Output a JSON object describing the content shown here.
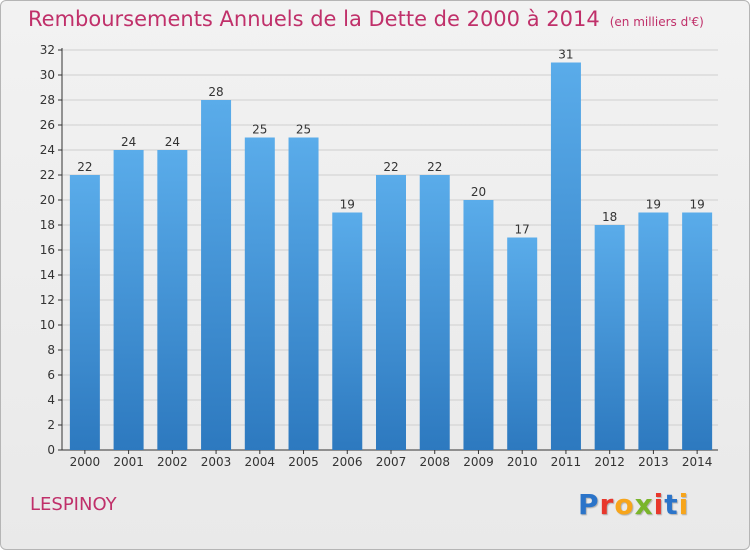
{
  "title": "Remboursements Annuels de la Dette de 2000 à 2014",
  "subtitle": "(en milliers d'€)",
  "commune": "LESPINOY",
  "logo": {
    "text": "Proxiti",
    "letter_colors": [
      "#2b74c9",
      "#e8372c",
      "#f7a51b",
      "#7ab52b",
      "#e8372c",
      "#2b74c9",
      "#f7a51b"
    ]
  },
  "colors": {
    "title": "#c0306a",
    "bar_top": "#5aacea",
    "bar_bottom": "#2d79bf",
    "axis": "#333333",
    "grid": "#cfcfcf"
  },
  "chart_data": {
    "type": "bar",
    "categories": [
      "2000",
      "2001",
      "2002",
      "2003",
      "2004",
      "2005",
      "2006",
      "2007",
      "2008",
      "2009",
      "2010",
      "2011",
      "2012",
      "2013",
      "2014"
    ],
    "values": [
      22,
      24,
      24,
      28,
      25,
      25,
      19,
      22,
      22,
      20,
      17,
      31,
      18,
      19,
      19
    ],
    "ylim": [
      0,
      32
    ],
    "yticks": [
      0,
      2,
      4,
      6,
      8,
      10,
      12,
      14,
      16,
      18,
      20,
      22,
      24,
      26,
      28,
      30,
      32
    ],
    "grid": true,
    "data_labels": true
  }
}
